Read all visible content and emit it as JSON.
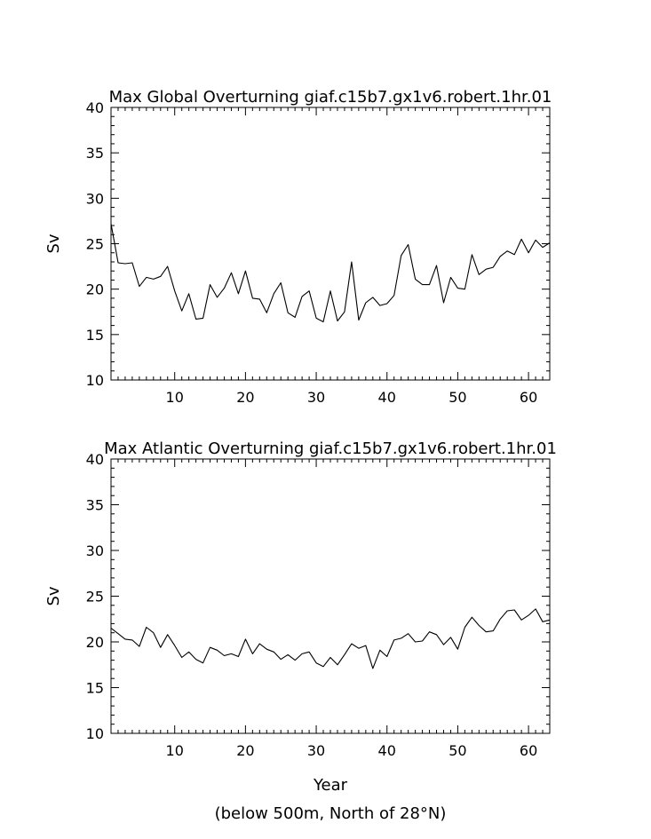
{
  "chart_data": [
    {
      "type": "line",
      "title": "Max Global Overturning giaf.c15b7.gx1v6.robert.1hr.01",
      "xlabel": "",
      "ylabel": "Sv",
      "xlim": [
        1,
        63
      ],
      "ylim": [
        10,
        40
      ],
      "x_ticks": [
        10,
        20,
        30,
        40,
        50,
        60
      ],
      "y_ticks": [
        10,
        15,
        20,
        25,
        30,
        35,
        40
      ],
      "grid": false,
      "series": [
        {
          "x": [
            1,
            2,
            3,
            4,
            5,
            6,
            7,
            8,
            9,
            10,
            11,
            12,
            13,
            14,
            15,
            16,
            17,
            18,
            19,
            20,
            21,
            22,
            23,
            24,
            25,
            26,
            27,
            28,
            29,
            30,
            31,
            32,
            33,
            34,
            35,
            36,
            37,
            38,
            39,
            40,
            41,
            42,
            43,
            44,
            45,
            46,
            47,
            48,
            49,
            50,
            51,
            52,
            53,
            54,
            55,
            56,
            57,
            58,
            59,
            60,
            61,
            62,
            63
          ],
          "values": [
            27.2,
            22.9,
            22.8,
            22.9,
            20.3,
            21.3,
            21.1,
            21.4,
            22.5,
            19.8,
            17.6,
            19.5,
            16.7,
            16.8,
            20.5,
            19.1,
            20.1,
            21.8,
            19.5,
            22.0,
            19.0,
            18.9,
            17.4,
            19.5,
            20.7,
            17.4,
            16.9,
            19.2,
            19.8,
            16.8,
            16.4,
            19.8,
            16.5,
            17.5,
            23.0,
            16.6,
            18.5,
            19.1,
            18.2,
            18.4,
            19.3,
            23.7,
            24.9,
            21.1,
            20.5,
            20.5,
            22.6,
            18.5,
            21.3,
            20.1,
            20.0,
            23.8,
            21.6,
            22.2,
            22.4,
            23.6,
            24.2,
            23.8,
            25.5,
            24.0,
            25.4,
            24.6,
            25.1
          ]
        }
      ]
    },
    {
      "type": "line",
      "title": "Max Atlantic Overturning giaf.c15b7.gx1v6.robert.1hr.01",
      "xlabel": "Year",
      "ylabel": "Sv",
      "note": "(below 500m, North of 28°N)",
      "xlim": [
        1,
        63
      ],
      "ylim": [
        10,
        40
      ],
      "x_ticks": [
        10,
        20,
        30,
        40,
        50,
        60
      ],
      "y_ticks": [
        10,
        15,
        20,
        25,
        30,
        35,
        40
      ],
      "grid": false,
      "series": [
        {
          "x": [
            1,
            2,
            3,
            4,
            5,
            6,
            7,
            8,
            9,
            10,
            11,
            12,
            13,
            14,
            15,
            16,
            17,
            18,
            19,
            20,
            21,
            22,
            23,
            24,
            25,
            26,
            27,
            28,
            29,
            30,
            31,
            32,
            33,
            34,
            35,
            36,
            37,
            38,
            39,
            40,
            41,
            42,
            43,
            44,
            45,
            46,
            47,
            48,
            49,
            50,
            51,
            52,
            53,
            54,
            55,
            56,
            57,
            58,
            59,
            60,
            61,
            62,
            63
          ],
          "values": [
            21.5,
            20.9,
            20.3,
            20.2,
            19.5,
            21.6,
            21.0,
            19.4,
            20.8,
            19.6,
            18.3,
            18.9,
            18.1,
            17.7,
            19.4,
            19.1,
            18.5,
            18.7,
            18.4,
            20.3,
            18.7,
            19.8,
            19.2,
            18.9,
            18.1,
            18.6,
            18.0,
            18.7,
            18.9,
            17.7,
            17.3,
            18.3,
            17.5,
            18.6,
            19.8,
            19.3,
            19.6,
            17.1,
            19.1,
            18.4,
            20.2,
            20.4,
            20.9,
            20.0,
            20.1,
            21.1,
            20.8,
            19.7,
            20.5,
            19.2,
            21.6,
            22.7,
            21.8,
            21.1,
            21.2,
            22.5,
            23.4,
            23.5,
            22.4,
            22.9,
            23.6,
            22.2,
            22.4
          ]
        }
      ]
    }
  ]
}
